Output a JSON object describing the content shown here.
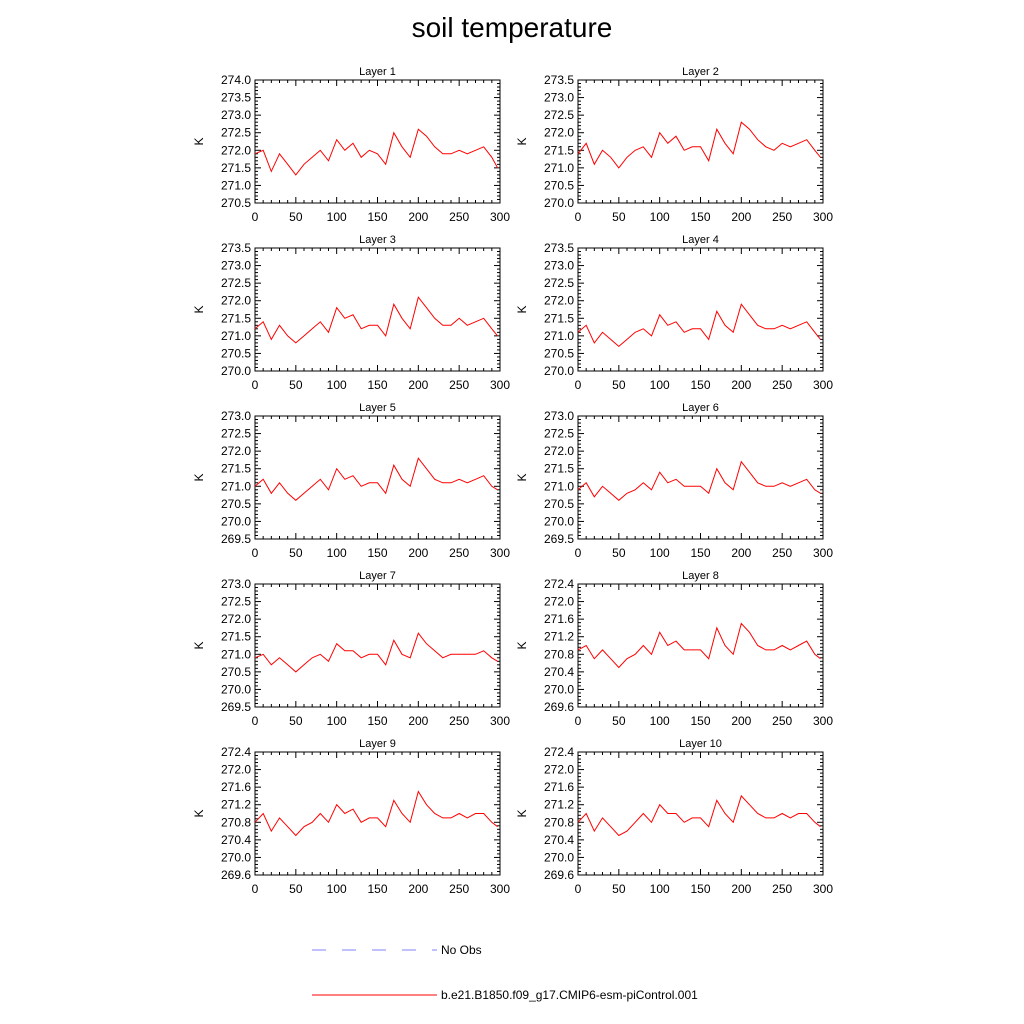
{
  "figure_title": "soil temperature",
  "chart_data": [
    {
      "type": "line",
      "title": "Layer 1",
      "ylabel": "K",
      "xlim": [
        0,
        300
      ],
      "ylim": [
        270.5,
        274.0
      ],
      "yticks": [
        "270.5",
        "271.0",
        "271.5",
        "272.0",
        "272.5",
        "273.0",
        "273.5",
        "274.0"
      ],
      "xticks": [
        "0",
        "50",
        "100",
        "150",
        "200",
        "250",
        "300"
      ],
      "series": [
        {
          "name": "b.e21.B1850.f09_g17.CMIP6-esm-piControl.001",
          "x": [
            0,
            10,
            20,
            30,
            40,
            50,
            60,
            70,
            80,
            90,
            100,
            110,
            120,
            130,
            140,
            150,
            160,
            170,
            180,
            190,
            200,
            210,
            220,
            230,
            240,
            250,
            260,
            270,
            280,
            290,
            297
          ],
          "values": [
            271.9,
            272.0,
            271.4,
            271.9,
            271.6,
            271.3,
            271.6,
            271.8,
            272.0,
            271.7,
            272.3,
            272.0,
            272.2,
            271.8,
            272.0,
            271.9,
            271.6,
            272.5,
            272.1,
            271.8,
            272.6,
            272.4,
            272.1,
            271.9,
            271.9,
            272.0,
            271.9,
            272.0,
            272.1,
            271.8,
            271.5
          ]
        }
      ]
    },
    {
      "type": "line",
      "title": "Layer 2",
      "ylabel": "K",
      "xlim": [
        0,
        300
      ],
      "ylim": [
        270.0,
        273.5
      ],
      "yticks": [
        "270.0",
        "270.5",
        "271.0",
        "271.5",
        "272.0",
        "272.5",
        "273.0",
        "273.5"
      ],
      "xticks": [
        "0",
        "50",
        "100",
        "150",
        "200",
        "250",
        "300"
      ],
      "series": [
        {
          "name": "b.e21.B1850.f09_g17.CMIP6-esm-piControl.001",
          "x": [
            0,
            10,
            20,
            30,
            40,
            50,
            60,
            70,
            80,
            90,
            100,
            110,
            120,
            130,
            140,
            150,
            160,
            170,
            180,
            190,
            200,
            210,
            220,
            230,
            240,
            250,
            260,
            270,
            280,
            290,
            297
          ],
          "values": [
            271.4,
            271.7,
            271.1,
            271.5,
            271.3,
            271.0,
            271.3,
            271.5,
            271.6,
            271.3,
            272.0,
            271.7,
            271.9,
            271.5,
            271.6,
            271.6,
            271.2,
            272.1,
            271.7,
            271.4,
            272.3,
            272.1,
            271.8,
            271.6,
            271.5,
            271.7,
            271.6,
            271.7,
            271.8,
            271.5,
            271.3
          ]
        }
      ]
    },
    {
      "type": "line",
      "title": "Layer 3",
      "ylabel": "K",
      "xlim": [
        0,
        300
      ],
      "ylim": [
        270.0,
        273.5
      ],
      "yticks": [
        "270.0",
        "270.5",
        "271.0",
        "271.5",
        "272.0",
        "272.5",
        "273.0",
        "273.5"
      ],
      "xticks": [
        "0",
        "50",
        "100",
        "150",
        "200",
        "250",
        "300"
      ],
      "series": [
        {
          "name": "b.e21.B1850.f09_g17.CMIP6-esm-piControl.001",
          "x": [
            0,
            10,
            20,
            30,
            40,
            50,
            60,
            70,
            80,
            90,
            100,
            110,
            120,
            130,
            140,
            150,
            160,
            170,
            180,
            190,
            200,
            210,
            220,
            230,
            240,
            250,
            260,
            270,
            280,
            290,
            297
          ],
          "values": [
            271.2,
            271.4,
            270.9,
            271.3,
            271.0,
            270.8,
            271.0,
            271.2,
            271.4,
            271.1,
            271.8,
            271.5,
            271.6,
            271.2,
            271.3,
            271.3,
            271.0,
            271.9,
            271.5,
            271.2,
            272.1,
            271.8,
            271.5,
            271.3,
            271.3,
            271.5,
            271.3,
            271.4,
            271.5,
            271.2,
            271.0
          ]
        }
      ]
    },
    {
      "type": "line",
      "title": "Layer 4",
      "ylabel": "K",
      "xlim": [
        0,
        300
      ],
      "ylim": [
        270.0,
        273.5
      ],
      "yticks": [
        "270.0",
        "270.5",
        "271.0",
        "271.5",
        "272.0",
        "272.5",
        "273.0",
        "273.5"
      ],
      "xticks": [
        "0",
        "50",
        "100",
        "150",
        "200",
        "250",
        "300"
      ],
      "series": [
        {
          "name": "b.e21.B1850.f09_g17.CMIP6-esm-piControl.001",
          "x": [
            0,
            10,
            20,
            30,
            40,
            50,
            60,
            70,
            80,
            90,
            100,
            110,
            120,
            130,
            140,
            150,
            160,
            170,
            180,
            190,
            200,
            210,
            220,
            230,
            240,
            250,
            260,
            270,
            280,
            290,
            297
          ],
          "values": [
            271.1,
            271.3,
            270.8,
            271.1,
            270.9,
            270.7,
            270.9,
            271.1,
            271.2,
            271.0,
            271.6,
            271.3,
            271.4,
            271.1,
            271.2,
            271.2,
            270.9,
            271.7,
            271.3,
            271.1,
            271.9,
            271.6,
            271.3,
            271.2,
            271.2,
            271.3,
            271.2,
            271.3,
            271.4,
            271.1,
            270.9
          ]
        }
      ]
    },
    {
      "type": "line",
      "title": "Layer 5",
      "ylabel": "K",
      "xlim": [
        0,
        300
      ],
      "ylim": [
        269.5,
        273.0
      ],
      "yticks": [
        "269.5",
        "270.0",
        "270.5",
        "271.0",
        "271.5",
        "272.0",
        "272.5",
        "273.0"
      ],
      "xticks": [
        "0",
        "50",
        "100",
        "150",
        "200",
        "250",
        "300"
      ],
      "series": [
        {
          "name": "b.e21.B1850.f09_g17.CMIP6-esm-piControl.001",
          "x": [
            0,
            10,
            20,
            30,
            40,
            50,
            60,
            70,
            80,
            90,
            100,
            110,
            120,
            130,
            140,
            150,
            160,
            170,
            180,
            190,
            200,
            210,
            220,
            230,
            240,
            250,
            260,
            270,
            280,
            290,
            297
          ],
          "values": [
            271.0,
            271.2,
            270.8,
            271.1,
            270.8,
            270.6,
            270.8,
            271.0,
            271.2,
            270.9,
            271.5,
            271.2,
            271.3,
            271.0,
            271.1,
            271.1,
            270.8,
            271.6,
            271.2,
            271.0,
            271.8,
            271.5,
            271.2,
            271.1,
            271.1,
            271.2,
            271.1,
            271.2,
            271.3,
            271.0,
            270.9
          ]
        }
      ]
    },
    {
      "type": "line",
      "title": "Layer 6",
      "ylabel": "K",
      "xlim": [
        0,
        300
      ],
      "ylim": [
        269.5,
        273.0
      ],
      "yticks": [
        "269.5",
        "270.0",
        "270.5",
        "271.0",
        "271.5",
        "272.0",
        "272.5",
        "273.0"
      ],
      "xticks": [
        "0",
        "50",
        "100",
        "150",
        "200",
        "250",
        "300"
      ],
      "series": [
        {
          "name": "b.e21.B1850.f09_g17.CMIP6-esm-piControl.001",
          "x": [
            0,
            10,
            20,
            30,
            40,
            50,
            60,
            70,
            80,
            90,
            100,
            110,
            120,
            130,
            140,
            150,
            160,
            170,
            180,
            190,
            200,
            210,
            220,
            230,
            240,
            250,
            260,
            270,
            280,
            290,
            297
          ],
          "values": [
            270.9,
            271.1,
            270.7,
            271.0,
            270.8,
            270.6,
            270.8,
            270.9,
            271.1,
            270.9,
            271.4,
            271.1,
            271.2,
            271.0,
            271.0,
            271.0,
            270.8,
            271.5,
            271.1,
            270.9,
            271.7,
            271.4,
            271.1,
            271.0,
            271.0,
            271.1,
            271.0,
            271.1,
            271.2,
            270.9,
            270.8
          ]
        }
      ]
    },
    {
      "type": "line",
      "title": "Layer 7",
      "ylabel": "K",
      "xlim": [
        0,
        300
      ],
      "ylim": [
        269.5,
        273.0
      ],
      "yticks": [
        "269.5",
        "270.0",
        "270.5",
        "271.0",
        "271.5",
        "272.0",
        "272.5",
        "273.0"
      ],
      "xticks": [
        "0",
        "50",
        "100",
        "150",
        "200",
        "250",
        "300"
      ],
      "series": [
        {
          "name": "b.e21.B1850.f09_g17.CMIP6-esm-piControl.001",
          "x": [
            0,
            10,
            20,
            30,
            40,
            50,
            60,
            70,
            80,
            90,
            100,
            110,
            120,
            130,
            140,
            150,
            160,
            170,
            180,
            190,
            200,
            210,
            220,
            230,
            240,
            250,
            260,
            270,
            280,
            290,
            297
          ],
          "values": [
            270.9,
            271.0,
            270.7,
            270.9,
            270.7,
            270.5,
            270.7,
            270.9,
            271.0,
            270.8,
            271.3,
            271.1,
            271.1,
            270.9,
            271.0,
            271.0,
            270.7,
            271.4,
            271.0,
            270.9,
            271.6,
            271.3,
            271.1,
            270.9,
            271.0,
            271.0,
            271.0,
            271.0,
            271.1,
            270.9,
            270.8
          ]
        }
      ]
    },
    {
      "type": "line",
      "title": "Layer 8",
      "ylabel": "K",
      "xlim": [
        0,
        300
      ],
      "ylim": [
        269.6,
        272.4
      ],
      "yticks": [
        "269.6",
        "270.0",
        "270.4",
        "270.8",
        "271.2",
        "271.6",
        "272.0",
        "272.4"
      ],
      "xticks": [
        "0",
        "50",
        "100",
        "150",
        "200",
        "250",
        "300"
      ],
      "series": [
        {
          "name": "b.e21.B1850.f09_g17.CMIP6-esm-piControl.001",
          "x": [
            0,
            10,
            20,
            30,
            40,
            50,
            60,
            70,
            80,
            90,
            100,
            110,
            120,
            130,
            140,
            150,
            160,
            170,
            180,
            190,
            200,
            210,
            220,
            230,
            240,
            250,
            260,
            270,
            280,
            290,
            297
          ],
          "values": [
            270.9,
            271.0,
            270.7,
            270.9,
            270.7,
            270.5,
            270.7,
            270.8,
            271.0,
            270.8,
            271.3,
            271.0,
            271.1,
            270.9,
            270.9,
            270.9,
            270.7,
            271.4,
            271.0,
            270.8,
            271.5,
            271.3,
            271.0,
            270.9,
            270.9,
            271.0,
            270.9,
            271.0,
            271.1,
            270.8,
            270.7
          ]
        }
      ]
    },
    {
      "type": "line",
      "title": "Layer 9",
      "ylabel": "K",
      "xlim": [
        0,
        300
      ],
      "ylim": [
        269.6,
        272.4
      ],
      "yticks": [
        "269.6",
        "270.0",
        "270.4",
        "270.8",
        "271.2",
        "271.6",
        "272.0",
        "272.4"
      ],
      "xticks": [
        "0",
        "50",
        "100",
        "150",
        "200",
        "250",
        "300"
      ],
      "series": [
        {
          "name": "b.e21.B1850.f09_g17.CMIP6-esm-piControl.001",
          "x": [
            0,
            10,
            20,
            30,
            40,
            50,
            60,
            70,
            80,
            90,
            100,
            110,
            120,
            130,
            140,
            150,
            160,
            170,
            180,
            190,
            200,
            210,
            220,
            230,
            240,
            250,
            260,
            270,
            280,
            290,
            297
          ],
          "values": [
            270.8,
            271.0,
            270.6,
            270.9,
            270.7,
            270.5,
            270.7,
            270.8,
            271.0,
            270.8,
            271.2,
            271.0,
            271.1,
            270.8,
            270.9,
            270.9,
            270.7,
            271.3,
            271.0,
            270.8,
            271.5,
            271.2,
            271.0,
            270.9,
            270.9,
            271.0,
            270.9,
            271.0,
            271.0,
            270.8,
            270.7
          ]
        }
      ]
    },
    {
      "type": "line",
      "title": "Layer 10",
      "ylabel": "K",
      "xlim": [
        0,
        300
      ],
      "ylim": [
        269.6,
        272.4
      ],
      "yticks": [
        "269.6",
        "270.0",
        "270.4",
        "270.8",
        "271.2",
        "271.6",
        "272.0",
        "272.4"
      ],
      "xticks": [
        "0",
        "50",
        "100",
        "150",
        "200",
        "250",
        "300"
      ],
      "series": [
        {
          "name": "b.e21.B1850.f09_g17.CMIP6-esm-piControl.001",
          "x": [
            0,
            10,
            20,
            30,
            40,
            50,
            60,
            70,
            80,
            90,
            100,
            110,
            120,
            130,
            140,
            150,
            160,
            170,
            180,
            190,
            200,
            210,
            220,
            230,
            240,
            250,
            260,
            270,
            280,
            290,
            297
          ],
          "values": [
            270.8,
            271.0,
            270.6,
            270.9,
            270.7,
            270.5,
            270.6,
            270.8,
            271.0,
            270.8,
            271.2,
            271.0,
            271.0,
            270.8,
            270.9,
            270.9,
            270.7,
            271.3,
            271.0,
            270.8,
            271.4,
            271.2,
            271.0,
            270.9,
            270.9,
            271.0,
            270.9,
            271.0,
            271.0,
            270.8,
            270.7
          ]
        }
      ]
    }
  ],
  "legend": {
    "no_obs_label": "No Obs",
    "no_obs_color": "#8080ff",
    "model_label": "b.e21.B1850.f09_g17.CMIP6-esm-piControl.001",
    "model_color": "#ff0000"
  }
}
